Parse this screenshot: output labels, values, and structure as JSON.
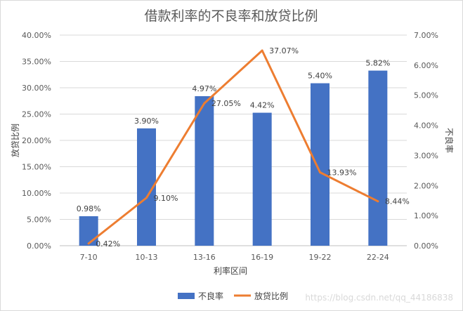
{
  "chart_data": {
    "type": "bar+line",
    "title": "借款利率的不良率和放贷比例",
    "xlabel": "利率区间",
    "ylabel_left": "放贷比例",
    "ylabel_right": "不良率",
    "categories": [
      "7-10",
      "10-13",
      "13-16",
      "16-19",
      "19-22",
      "22-24"
    ],
    "series": [
      {
        "name": "不良率",
        "type": "bar",
        "axis": "right",
        "color": "#4472c4",
        "values": [
          0.98,
          3.9,
          4.97,
          4.42,
          5.4,
          5.82
        ],
        "labels": [
          "0.98%",
          "3.90%",
          "4.97%",
          "4.42%",
          "5.40%",
          "5.82%"
        ]
      },
      {
        "name": "放贷比例",
        "type": "line",
        "axis": "left",
        "color": "#ed7d31",
        "values": [
          0.42,
          9.1,
          27.05,
          37.07,
          13.93,
          8.44
        ],
        "labels": [
          "0.42%",
          "9.10%",
          "27.05%",
          "37.07%",
          "13.93%",
          "8.44%"
        ]
      }
    ],
    "ylim_left": [
      0,
      40
    ],
    "ylim_right": [
      0,
      7
    ],
    "left_ticks": [
      "0.00%",
      "5.00%",
      "10.00%",
      "15.00%",
      "20.00%",
      "25.00%",
      "30.00%",
      "35.00%",
      "40.00%"
    ],
    "right_ticks": [
      "0.00%",
      "1.00%",
      "2.00%",
      "3.00%",
      "4.00%",
      "5.00%",
      "6.00%",
      "7.00%"
    ],
    "grid": true,
    "legend": "bottom"
  },
  "watermark": "https://blog.csdn.net/qq_44186838"
}
